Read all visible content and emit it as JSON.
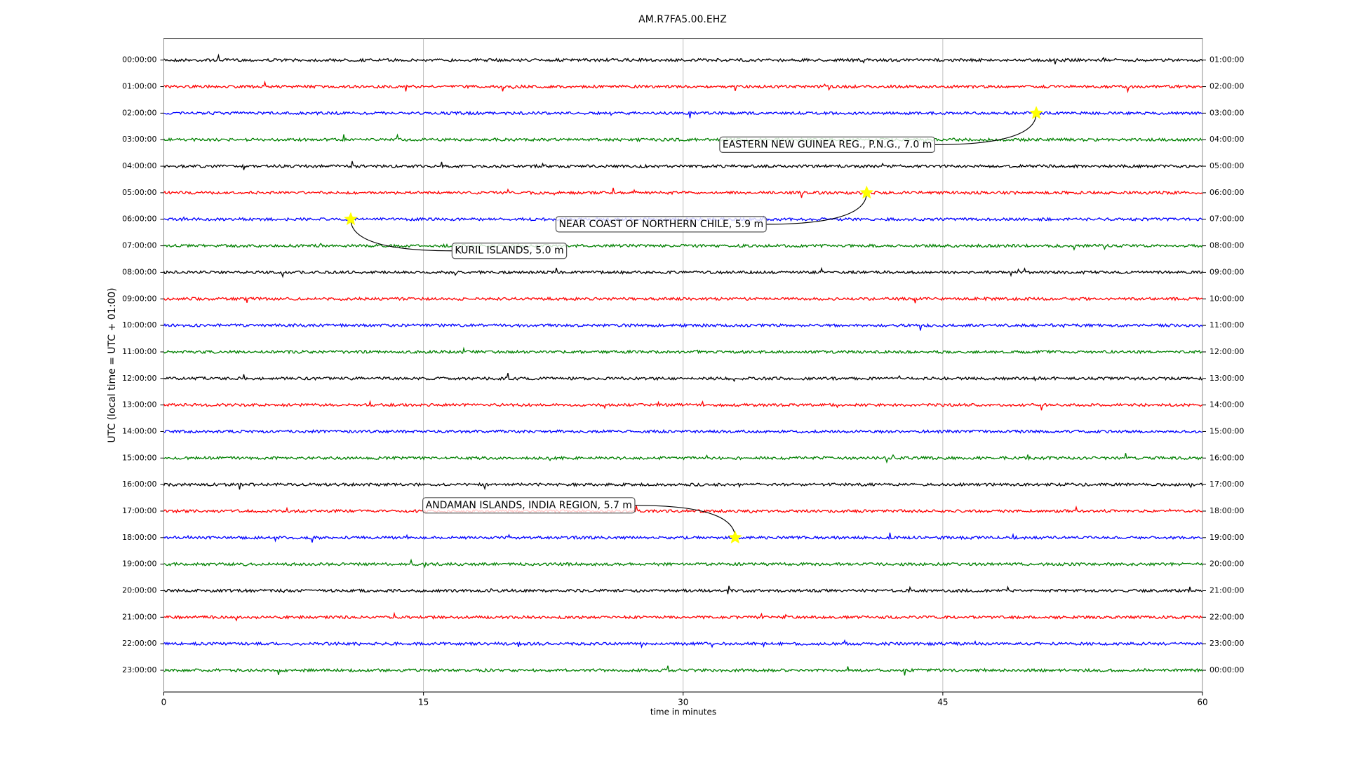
{
  "chart_data": {
    "type": "dayplot",
    "title": "AM.R7FA5.00.EHZ",
    "xlabel": "time in minutes",
    "ylabel": "UTC (local time = UTC + 01:00)",
    "xlim": [
      0,
      60
    ],
    "xticks": [
      0,
      15,
      30,
      45,
      60
    ],
    "grid": true,
    "colors": [
      "#000000",
      "#ff0000",
      "#0000ff",
      "#008000"
    ],
    "rows": [
      "00:00:00",
      "01:00:00",
      "02:00:00",
      "03:00:00",
      "04:00:00",
      "05:00:00",
      "06:00:00",
      "07:00:00",
      "08:00:00",
      "09:00:00",
      "10:00:00",
      "11:00:00",
      "12:00:00",
      "13:00:00",
      "14:00:00",
      "15:00:00",
      "16:00:00",
      "17:00:00",
      "18:00:00",
      "19:00:00",
      "20:00:00",
      "21:00:00",
      "22:00:00",
      "23:00:00"
    ],
    "rows_right": [
      "01:00:00",
      "02:00:00",
      "03:00:00",
      "04:00:00",
      "05:00:00",
      "06:00:00",
      "07:00:00",
      "08:00:00",
      "09:00:00",
      "10:00:00",
      "11:00:00",
      "12:00:00",
      "13:00:00",
      "14:00:00",
      "15:00:00",
      "16:00:00",
      "17:00:00",
      "18:00:00",
      "19:00:00",
      "20:00:00",
      "21:00:00",
      "22:00:00",
      "23:00:00",
      "00:00:00"
    ],
    "event_color": "#ffff00",
    "events": [
      {
        "label": "EASTERN NEW GUINEA REG., P.N.G., 7.0 m",
        "row": 2,
        "minute": 50.4
      },
      {
        "label": "NEAR COAST OF NORTHERN CHILE, 5.9 m",
        "row": 5,
        "minute": 40.6
      },
      {
        "label": "KURIL ISLANDS, 5.0 m",
        "row": 6,
        "minute": 10.8
      },
      {
        "label": "ANDAMAN ISLANDS, INDIA REGION, 5.7 m",
        "row": 18,
        "minute": 33.0
      }
    ]
  }
}
